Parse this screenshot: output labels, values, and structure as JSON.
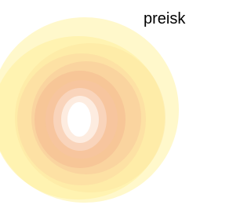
{
  "caption": {
    "text": "preisk"
  }
}
